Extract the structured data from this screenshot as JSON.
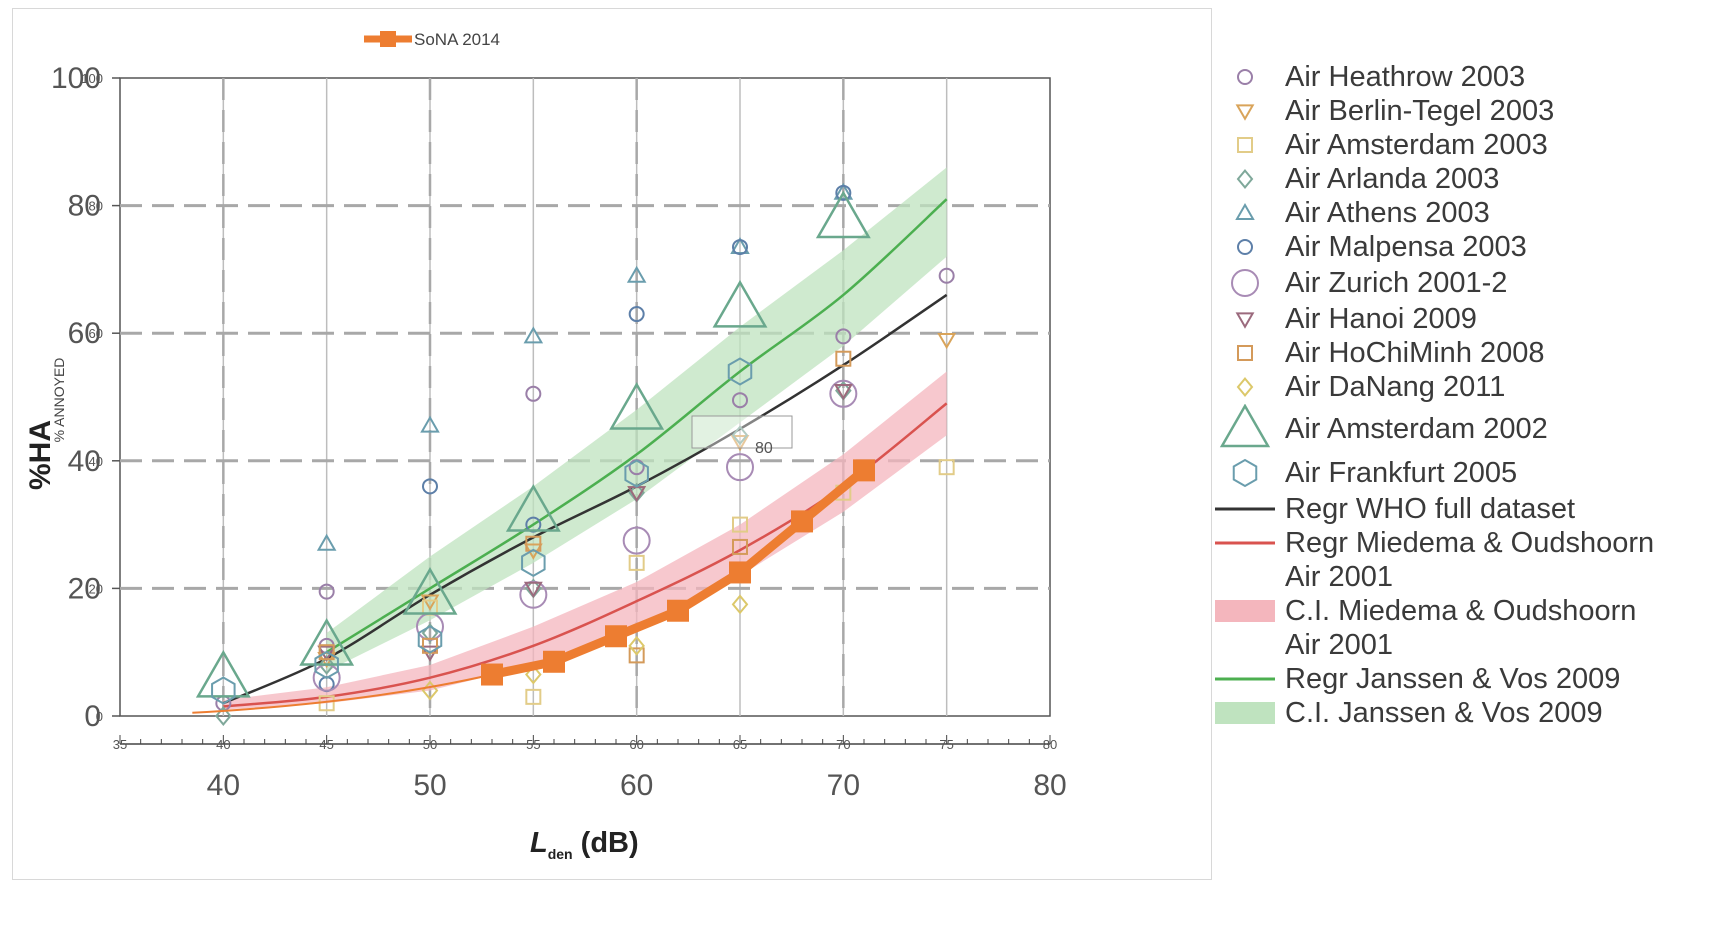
{
  "chart_data": {
    "type": "line",
    "xlabel_main": "L",
    "xlabel_sub": "den",
    "xlabel_unit": " (dB)",
    "ylabel": "%HA",
    "ylabel_small": "% ANNOYED",
    "x_ticks": [
      "40",
      "50",
      "60",
      "70",
      "80"
    ],
    "x_ticks_small": [
      "35",
      "40",
      "45",
      "50",
      "55",
      "60",
      "65",
      "70",
      "75",
      "80"
    ],
    "y_ticks": [
      "0",
      "20",
      "40",
      "60",
      "80",
      "100"
    ],
    "y_ticks_small": [
      "0",
      "20",
      "40",
      "60",
      "80",
      "100"
    ],
    "xlim": [
      35,
      80
    ],
    "ylim": [
      0,
      100
    ],
    "inset_label": "80",
    "sona": {
      "name": "SoNA 2014",
      "color": "#ed7d31",
      "x": [
        53,
        56,
        59,
        62,
        65,
        68,
        71
      ],
      "y": [
        6.5,
        8.5,
        12.5,
        16.5,
        22.5,
        30.5,
        38.5
      ]
    },
    "curves": [
      {
        "name": "Regr WHO full dataset",
        "color": "#333333",
        "x": [
          40,
          45,
          50,
          55,
          60,
          65,
          70,
          75
        ],
        "y": [
          2,
          9,
          19,
          28,
          36,
          45,
          55,
          66
        ]
      },
      {
        "name": "Regr Miedema & Oudshoorn Air 2001",
        "color": "#d9534f",
        "x": [
          40,
          45,
          50,
          55,
          60,
          65,
          70,
          75
        ],
        "y": [
          1.5,
          3,
          6,
          11,
          18,
          26,
          36,
          49
        ]
      },
      {
        "name": "Regr Janssen & Vos 2009",
        "color": "#4caf50",
        "x": [
          45,
          50,
          55,
          60,
          65,
          70,
          75
        ],
        "y": [
          10,
          20,
          30,
          41,
          54,
          66,
          81
        ]
      }
    ],
    "bands": [
      {
        "name": "C.I. Miedema & Oudshoorn Air 2001",
        "color": "#f4b6bd",
        "x": [
          40,
          45,
          50,
          55,
          60,
          65,
          70,
          75
        ],
        "lo": [
          1,
          2,
          4,
          8,
          14,
          22,
          32,
          44
        ],
        "hi": [
          2.5,
          4.5,
          8,
          14,
          21,
          30,
          41,
          54
        ]
      },
      {
        "name": "C.I. Janssen & Vos 2009",
        "color": "#bfe3bf",
        "x": [
          45,
          50,
          55,
          60,
          65,
          70,
          75
        ],
        "lo": [
          7,
          15,
          24,
          34,
          46,
          58,
          72
        ],
        "hi": [
          13,
          25,
          36,
          48,
          61,
          73,
          86
        ]
      }
    ],
    "scatter": [
      {
        "name": "Air Heathrow 2003",
        "shape": "circle",
        "size": "s",
        "color": "#9a7fa8",
        "points": [
          [
            40,
            2
          ],
          [
            45,
            11
          ],
          [
            45,
            19.5
          ],
          [
            55,
            50.5
          ],
          [
            60,
            39
          ],
          [
            65,
            49.5
          ],
          [
            70,
            59.5
          ],
          [
            75,
            69
          ]
        ]
      },
      {
        "name": "Air Berlin-Tegel 2003",
        "shape": "tridown",
        "size": "s",
        "color": "#d9a45a",
        "points": [
          [
            45,
            9
          ],
          [
            50,
            18
          ],
          [
            55,
            26
          ],
          [
            60,
            35
          ],
          [
            65,
            43
          ],
          [
            70,
            51
          ],
          [
            75,
            59
          ]
        ]
      },
      {
        "name": "Air Amsterdam 2003",
        "shape": "square",
        "size": "s",
        "color": "#e2cc88",
        "points": [
          [
            45,
            2
          ],
          [
            50,
            17
          ],
          [
            55,
            3
          ],
          [
            60,
            24
          ],
          [
            65,
            30
          ],
          [
            70,
            35
          ],
          [
            75,
            39
          ]
        ]
      },
      {
        "name": "Air Arlanda 2003",
        "shape": "diamond",
        "size": "s",
        "color": "#7fa89a",
        "points": [
          [
            40,
            0
          ],
          [
            45,
            8
          ],
          [
            50,
            13
          ],
          [
            55,
            20
          ],
          [
            60,
            35
          ],
          [
            65,
            44
          ],
          [
            70,
            51
          ]
        ]
      },
      {
        "name": "Air Athens 2003",
        "shape": "triup",
        "size": "s",
        "color": "#6a9dad",
        "points": [
          [
            45,
            27
          ],
          [
            50,
            45.5
          ],
          [
            55,
            59.5
          ],
          [
            60,
            69
          ],
          [
            65,
            73.5
          ],
          [
            70,
            82
          ]
        ]
      },
      {
        "name": "Air Malpensa 2003",
        "shape": "circle",
        "size": "s",
        "color": "#5d7fa8",
        "points": [
          [
            45,
            5
          ],
          [
            50,
            36
          ],
          [
            55,
            30
          ],
          [
            60,
            63
          ],
          [
            65,
            73.5
          ],
          [
            70,
            82
          ]
        ]
      },
      {
        "name": "Air Zurich 2001-2",
        "shape": "circle",
        "size": "m",
        "color": "#a88bb5",
        "points": [
          [
            45,
            6
          ],
          [
            50,
            14
          ],
          [
            55,
            19
          ],
          [
            60,
            27.5
          ],
          [
            65,
            39
          ],
          [
            70,
            50.5
          ]
        ]
      },
      {
        "name": "Air Hanoi 2009",
        "shape": "tridown",
        "size": "s",
        "color": "#9b6a7d",
        "points": [
          [
            45,
            10
          ],
          [
            50,
            10
          ],
          [
            55,
            20
          ],
          [
            60,
            35
          ],
          [
            70,
            51
          ]
        ]
      },
      {
        "name": "Air HoChiMinh 2008",
        "shape": "square",
        "size": "s",
        "color": "#d49a5a",
        "points": [
          [
            45,
            10
          ],
          [
            50,
            11
          ],
          [
            55,
            27
          ],
          [
            60,
            9.5
          ],
          [
            65,
            26.5
          ],
          [
            70,
            56
          ]
        ]
      },
      {
        "name": "Air DaNang 2011",
        "shape": "diamond",
        "size": "s",
        "color": "#dcc86a",
        "points": [
          [
            50,
            4
          ],
          [
            55,
            6.5
          ],
          [
            60,
            11
          ],
          [
            65,
            17.5
          ]
        ]
      },
      {
        "name": "Air Amsterdam 2002",
        "shape": "triup",
        "size": "l",
        "color": "#6aa88d",
        "points": [
          [
            40,
            6
          ],
          [
            45,
            11
          ],
          [
            50,
            19
          ],
          [
            55,
            32
          ],
          [
            60,
            48
          ],
          [
            65,
            64
          ],
          [
            70,
            78
          ]
        ]
      },
      {
        "name": "Air Frankfurt 2005",
        "shape": "hexagon",
        "size": "m",
        "color": "#6a9dad",
        "points": [
          [
            40,
            4
          ],
          [
            45,
            8
          ],
          [
            50,
            12
          ],
          [
            55,
            24
          ],
          [
            60,
            38
          ],
          [
            65,
            54
          ]
        ]
      }
    ],
    "legend": [
      {
        "label": "Air Heathrow 2003",
        "sym": "circle",
        "color": "#9a7fa8",
        "size": "s"
      },
      {
        "label": "Air Berlin-Tegel 2003",
        "sym": "tridown",
        "color": "#d9a45a",
        "size": "s"
      },
      {
        "label": "Air Amsterdam 2003",
        "sym": "square",
        "color": "#e2cc88",
        "size": "s"
      },
      {
        "label": "Air Arlanda 2003",
        "sym": "diamond",
        "color": "#7fa89a",
        "size": "s"
      },
      {
        "label": "Air Athens 2003",
        "sym": "triup",
        "color": "#6a9dad",
        "size": "s"
      },
      {
        "label": "Air Malpensa 2003",
        "sym": "circle",
        "color": "#5d7fa8",
        "size": "s"
      },
      {
        "label": "Air Zurich 2001-2",
        "sym": "circle",
        "color": "#a88bb5",
        "size": "m"
      },
      {
        "label": "Air Hanoi 2009",
        "sym": "tridown",
        "color": "#9b6a7d",
        "size": "s"
      },
      {
        "label": "Air HoChiMinh 2008",
        "sym": "square",
        "color": "#d49a5a",
        "size": "s"
      },
      {
        "label": "Air DaNang 2011",
        "sym": "diamond",
        "color": "#dcc86a",
        "size": "s"
      },
      {
        "label": "Air Amsterdam 2002",
        "sym": "triup",
        "color": "#6aa88d",
        "size": "l"
      },
      {
        "label": "Air Frankfurt 2005",
        "sym": "hexagon",
        "color": "#6a9dad",
        "size": "m"
      },
      {
        "label": "Regr WHO full dataset",
        "sym": "line",
        "color": "#333333"
      },
      {
        "label": "Regr Miedema & Oudshoorn Air 2001",
        "sym": "line",
        "color": "#d9534f"
      },
      {
        "label": "C.I. Miedema & Oudshoorn Air 2001",
        "sym": "rect",
        "color": "#f4b6bd"
      },
      {
        "label": "Regr Janssen & Vos 2009",
        "sym": "line",
        "color": "#4caf50"
      },
      {
        "label": "C.I. Janssen & Vos 2009",
        "sym": "rect",
        "color": "#bfe3bf"
      }
    ]
  }
}
